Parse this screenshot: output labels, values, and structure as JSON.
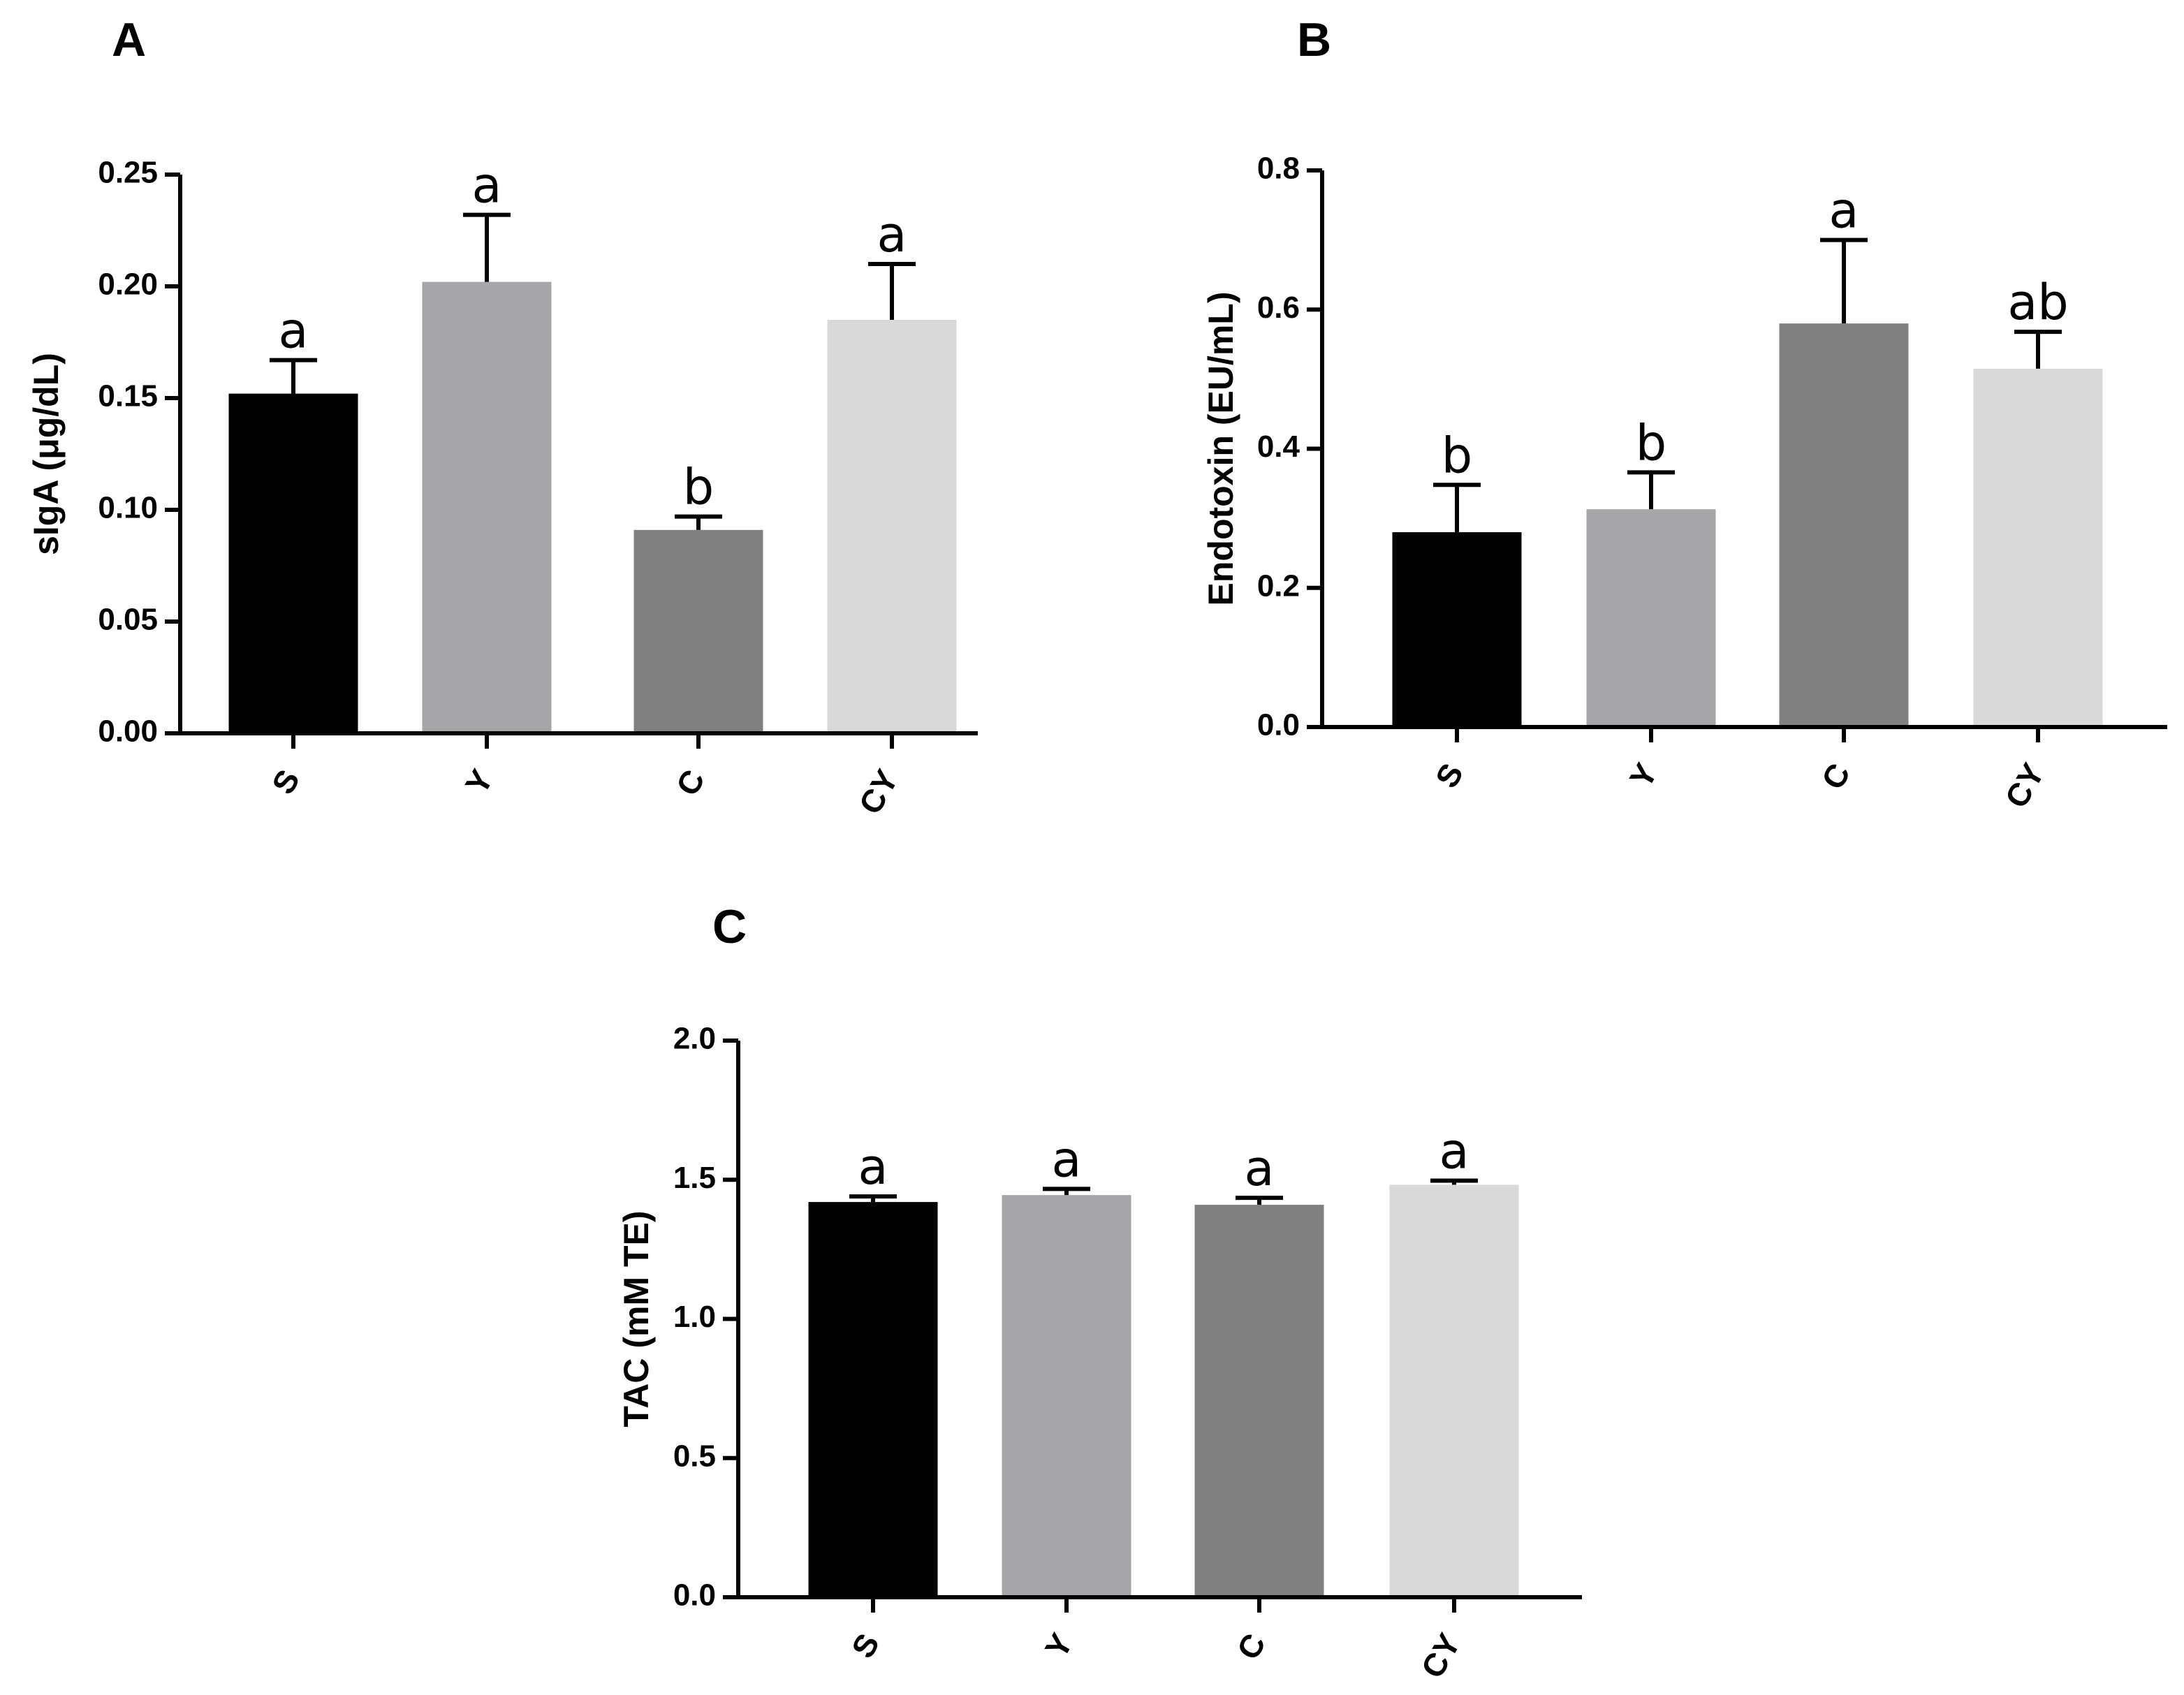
{
  "chart_data": [
    {
      "panel": "A",
      "type": "bar",
      "ylabel": "sIgA (μg/dL)",
      "ylim": [
        0,
        0.25
      ],
      "yticks": [
        "0.00",
        "0.05",
        "0.10",
        "0.15",
        "0.20",
        "0.25"
      ],
      "ytick_values": [
        0,
        0.05,
        0.1,
        0.15,
        0.2,
        0.25
      ],
      "categories": [
        "S",
        "Y",
        "C",
        "CY"
      ],
      "values": [
        0.152,
        0.202,
        0.091,
        0.185
      ],
      "errors": [
        0.015,
        0.03,
        0.006,
        0.025
      ],
      "significance": [
        "a",
        "a",
        "b",
        "a"
      ],
      "colors": [
        "#000000",
        "#a6a6aa",
        "#808080",
        "#d9d9d9"
      ]
    },
    {
      "panel": "B",
      "type": "bar",
      "ylabel": "Endotoxin (EU/mL)",
      "ylim": [
        0,
        0.8
      ],
      "yticks": [
        "0.0",
        "0.2",
        "0.4",
        "0.6",
        "0.8"
      ],
      "ytick_values": [
        0,
        0.2,
        0.4,
        0.6,
        0.8
      ],
      "categories": [
        "S",
        "Y",
        "C",
        "CY"
      ],
      "values": [
        0.28,
        0.313,
        0.58,
        0.515
      ],
      "errors": [
        0.068,
        0.053,
        0.12,
        0.053
      ],
      "significance": [
        "b",
        "b",
        "a",
        "ab"
      ],
      "colors": [
        "#000000",
        "#a6a6aa",
        "#808080",
        "#d9d9d9"
      ]
    },
    {
      "panel": "C",
      "type": "bar",
      "ylabel": "TAC (mM TE)",
      "ylim": [
        0,
        2.0
      ],
      "yticks": [
        "0.0",
        "0.5",
        "1.0",
        "1.5",
        "2.0"
      ],
      "ytick_values": [
        0,
        0.5,
        1.0,
        1.5,
        2.0
      ],
      "categories": [
        "S",
        "Y",
        "C",
        "CY"
      ],
      "values": [
        1.42,
        1.445,
        1.41,
        1.482
      ],
      "errors": [
        0.02,
        0.022,
        0.025,
        0.015
      ],
      "significance": [
        "a",
        "a",
        "a",
        "a"
      ],
      "colors": [
        "#000000",
        "#a6a6aa",
        "#808080",
        "#d9d9d9"
      ]
    }
  ]
}
